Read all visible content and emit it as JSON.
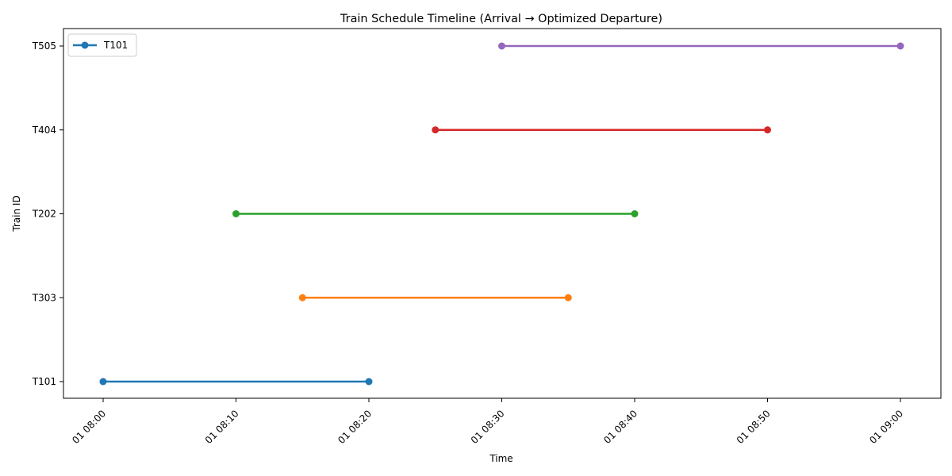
{
  "chart_data": {
    "type": "line",
    "title": "Train Schedule Timeline (Arrival → Optimized Departure)",
    "xlabel": "Time",
    "ylabel": "Train ID",
    "x_ticks": [
      "01 08:00",
      "01 08:10",
      "01 08:20",
      "01 08:30",
      "01 08:40",
      "01 08:50",
      "01 09:00"
    ],
    "y_categories": [
      "T101",
      "T303",
      "T202",
      "T404",
      "T505"
    ],
    "xlim": [
      "08:00",
      "09:00"
    ],
    "grid": false,
    "legend": {
      "placement": "top-left",
      "entries": [
        "T101"
      ]
    },
    "series": [
      {
        "name": "T101",
        "y": "T101",
        "x": [
          "08:00",
          "08:20"
        ],
        "color": "#1f77b4"
      },
      {
        "y": "T303",
        "x": [
          "08:15",
          "08:35"
        ],
        "color": "#ff7f0e"
      },
      {
        "y": "T202",
        "x": [
          "08:10",
          "08:40"
        ],
        "color": "#2ca02c"
      },
      {
        "y": "T404",
        "x": [
          "08:25",
          "08:50"
        ],
        "color": "#d62728"
      },
      {
        "y": "T505",
        "x": [
          "08:30",
          "09:00"
        ],
        "color": "#9467bd"
      }
    ]
  }
}
